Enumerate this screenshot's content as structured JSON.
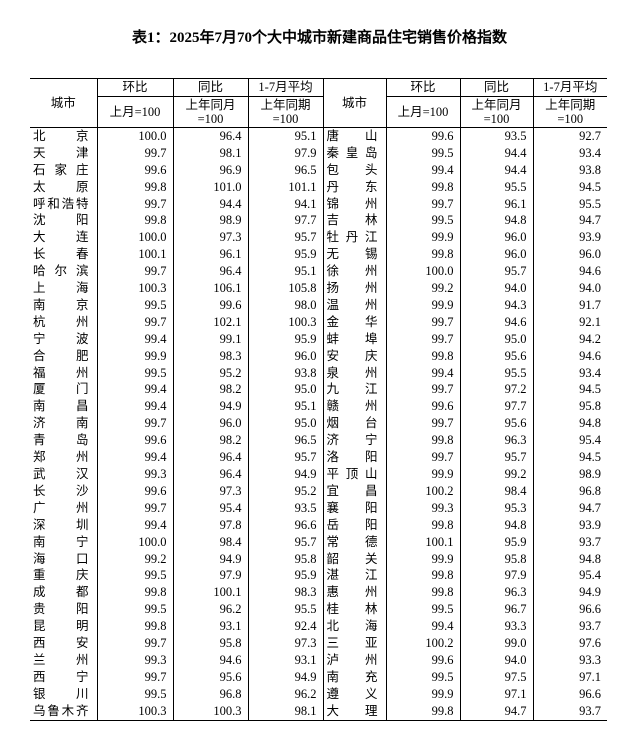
{
  "title": "表1：2025年7月70个大中城市新建商品住宅销售价格指数",
  "headers": {
    "city": "城市",
    "mom": "环比",
    "yoy": "同比",
    "avg": "1-7月平均",
    "mom_base": "上月=100",
    "yoy_base_1": "上年同月",
    "yoy_base_2": "=100",
    "avg_base_1": "上年同期",
    "avg_base_2": "=100"
  },
  "rows": [
    {
      "l": [
        "北京",
        "100.0",
        "96.4",
        "95.1"
      ],
      "r": [
        "唐山",
        "99.6",
        "93.5",
        "92.7"
      ]
    },
    {
      "l": [
        "天津",
        "99.7",
        "98.1",
        "97.9"
      ],
      "r": [
        "秦皇岛",
        "99.5",
        "94.4",
        "93.4"
      ]
    },
    {
      "l": [
        "石家庄",
        "99.6",
        "96.9",
        "96.5"
      ],
      "r": [
        "包头",
        "99.4",
        "94.4",
        "93.8"
      ]
    },
    {
      "l": [
        "太原",
        "99.8",
        "101.0",
        "101.1"
      ],
      "r": [
        "丹东",
        "99.8",
        "95.5",
        "94.5"
      ]
    },
    {
      "l": [
        "呼和浩特",
        "99.7",
        "94.4",
        "94.1"
      ],
      "r": [
        "锦州",
        "99.7",
        "96.1",
        "95.5"
      ]
    },
    {
      "l": [
        "沈阳",
        "99.8",
        "98.9",
        "97.7"
      ],
      "r": [
        "吉林",
        "99.5",
        "94.8",
        "94.7"
      ]
    },
    {
      "l": [
        "大连",
        "100.0",
        "97.3",
        "95.7"
      ],
      "r": [
        "牡丹江",
        "99.9",
        "96.0",
        "93.9"
      ]
    },
    {
      "l": [
        "长春",
        "100.1",
        "96.1",
        "95.9"
      ],
      "r": [
        "无锡",
        "99.8",
        "96.0",
        "96.0"
      ]
    },
    {
      "l": [
        "哈尔滨",
        "99.7",
        "96.4",
        "95.1"
      ],
      "r": [
        "徐州",
        "100.0",
        "95.7",
        "94.6"
      ]
    },
    {
      "l": [
        "上海",
        "100.3",
        "106.1",
        "105.8"
      ],
      "r": [
        "扬州",
        "99.2",
        "94.0",
        "94.0"
      ]
    },
    {
      "l": [
        "南京",
        "99.5",
        "99.6",
        "98.0"
      ],
      "r": [
        "温州",
        "99.9",
        "94.3",
        "91.7"
      ]
    },
    {
      "l": [
        "杭州",
        "99.7",
        "102.1",
        "100.3"
      ],
      "r": [
        "金华",
        "99.7",
        "94.6",
        "92.1"
      ]
    },
    {
      "l": [
        "宁波",
        "99.4",
        "99.1",
        "95.9"
      ],
      "r": [
        "蚌埠",
        "99.7",
        "95.0",
        "94.2"
      ]
    },
    {
      "l": [
        "合肥",
        "99.9",
        "98.3",
        "96.0"
      ],
      "r": [
        "安庆",
        "99.8",
        "95.6",
        "94.6"
      ]
    },
    {
      "l": [
        "福州",
        "99.5",
        "95.2",
        "93.8"
      ],
      "r": [
        "泉州",
        "99.4",
        "95.5",
        "93.4"
      ]
    },
    {
      "l": [
        "厦门",
        "99.4",
        "98.2",
        "95.0"
      ],
      "r": [
        "九江",
        "99.7",
        "97.2",
        "94.5"
      ]
    },
    {
      "l": [
        "南昌",
        "99.4",
        "94.9",
        "95.1"
      ],
      "r": [
        "赣州",
        "99.6",
        "97.7",
        "95.8"
      ]
    },
    {
      "l": [
        "济南",
        "99.7",
        "96.0",
        "95.0"
      ],
      "r": [
        "烟台",
        "99.7",
        "95.6",
        "94.8"
      ]
    },
    {
      "l": [
        "青岛",
        "99.6",
        "98.2",
        "96.5"
      ],
      "r": [
        "济宁",
        "99.8",
        "96.3",
        "95.4"
      ]
    },
    {
      "l": [
        "郑州",
        "99.4",
        "96.4",
        "95.7"
      ],
      "r": [
        "洛阳",
        "99.7",
        "95.7",
        "94.5"
      ]
    },
    {
      "l": [
        "武汉",
        "99.3",
        "96.4",
        "94.9"
      ],
      "r": [
        "平顶山",
        "99.9",
        "99.2",
        "98.9"
      ]
    },
    {
      "l": [
        "长沙",
        "99.6",
        "97.3",
        "95.2"
      ],
      "r": [
        "宜昌",
        "100.2",
        "98.4",
        "96.8"
      ]
    },
    {
      "l": [
        "广州",
        "99.7",
        "95.4",
        "93.5"
      ],
      "r": [
        "襄阳",
        "99.3",
        "95.3",
        "94.7"
      ]
    },
    {
      "l": [
        "深圳",
        "99.4",
        "97.8",
        "96.6"
      ],
      "r": [
        "岳阳",
        "99.8",
        "94.8",
        "93.9"
      ]
    },
    {
      "l": [
        "南宁",
        "100.0",
        "98.4",
        "95.7"
      ],
      "r": [
        "常德",
        "100.1",
        "95.9",
        "93.7"
      ]
    },
    {
      "l": [
        "海口",
        "99.2",
        "94.9",
        "95.8"
      ],
      "r": [
        "韶关",
        "99.9",
        "95.8",
        "94.8"
      ]
    },
    {
      "l": [
        "重庆",
        "99.5",
        "97.9",
        "95.9"
      ],
      "r": [
        "湛江",
        "99.8",
        "97.9",
        "95.4"
      ]
    },
    {
      "l": [
        "成都",
        "99.8",
        "100.1",
        "98.3"
      ],
      "r": [
        "惠州",
        "99.8",
        "96.3",
        "94.9"
      ]
    },
    {
      "l": [
        "贵阳",
        "99.5",
        "96.2",
        "95.5"
      ],
      "r": [
        "桂林",
        "99.5",
        "96.7",
        "96.6"
      ]
    },
    {
      "l": [
        "昆明",
        "99.8",
        "93.1",
        "92.4"
      ],
      "r": [
        "北海",
        "99.4",
        "93.3",
        "93.7"
      ]
    },
    {
      "l": [
        "西安",
        "99.7",
        "95.8",
        "97.3"
      ],
      "r": [
        "三亚",
        "100.2",
        "99.0",
        "97.6"
      ]
    },
    {
      "l": [
        "兰州",
        "99.3",
        "94.6",
        "93.1"
      ],
      "r": [
        "泸州",
        "99.6",
        "94.0",
        "93.3"
      ]
    },
    {
      "l": [
        "西宁",
        "99.7",
        "95.6",
        "94.9"
      ],
      "r": [
        "南充",
        "99.5",
        "97.5",
        "97.1"
      ]
    },
    {
      "l": [
        "银川",
        "99.5",
        "96.8",
        "96.2"
      ],
      "r": [
        "遵义",
        "99.9",
        "97.1",
        "96.6"
      ]
    },
    {
      "l": [
        "乌鲁木齐",
        "100.3",
        "100.3",
        "98.1"
      ],
      "r": [
        "大理",
        "99.8",
        "94.7",
        "93.7"
      ]
    }
  ]
}
